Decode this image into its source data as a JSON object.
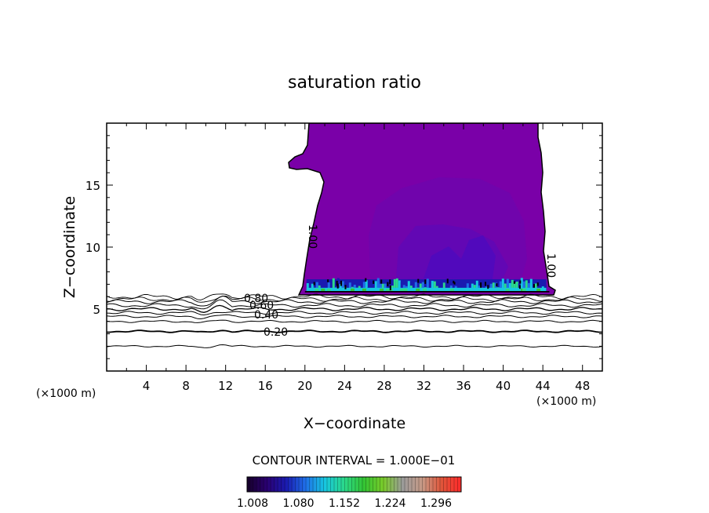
{
  "chart_data": {
    "type": "contour",
    "title": "saturation ratio",
    "xlabel": "X−coordinate",
    "ylabel": "Z−coordinate",
    "x_unit_left": "(×1000 m)",
    "x_unit_right": "(×1000 m)",
    "xlim": [
      0,
      50
    ],
    "ylim": [
      0,
      20
    ],
    "x_ticks": [
      4,
      8,
      12,
      16,
      20,
      24,
      28,
      32,
      36,
      40,
      44,
      48
    ],
    "y_ticks": [
      5,
      10,
      15
    ],
    "contour_labels": [
      "0.80",
      "0.60",
      "0.40",
      "0.20",
      "1.00",
      "1.00"
    ],
    "contour_interval_text": "CONTOUR INTERVAL = 1.000E−01",
    "colorbar": {
      "tick_labels": [
        "1.008",
        "1.080",
        "1.152",
        "1.224",
        "1.296"
      ],
      "colors": [
        "#16002a",
        "#2a0070",
        "#1a1ab0",
        "#1f6fe8",
        "#17c7e0",
        "#2bd98a",
        "#33c433",
        "#7acc2a",
        "#9b9b9b",
        "#c79a86",
        "#e0553a",
        "#ff2a2a"
      ]
    },
    "region": {
      "x_range": [
        20,
        44.5
      ],
      "z_range": [
        6.5,
        20
      ],
      "fill_color": "#7a00a8"
    }
  }
}
